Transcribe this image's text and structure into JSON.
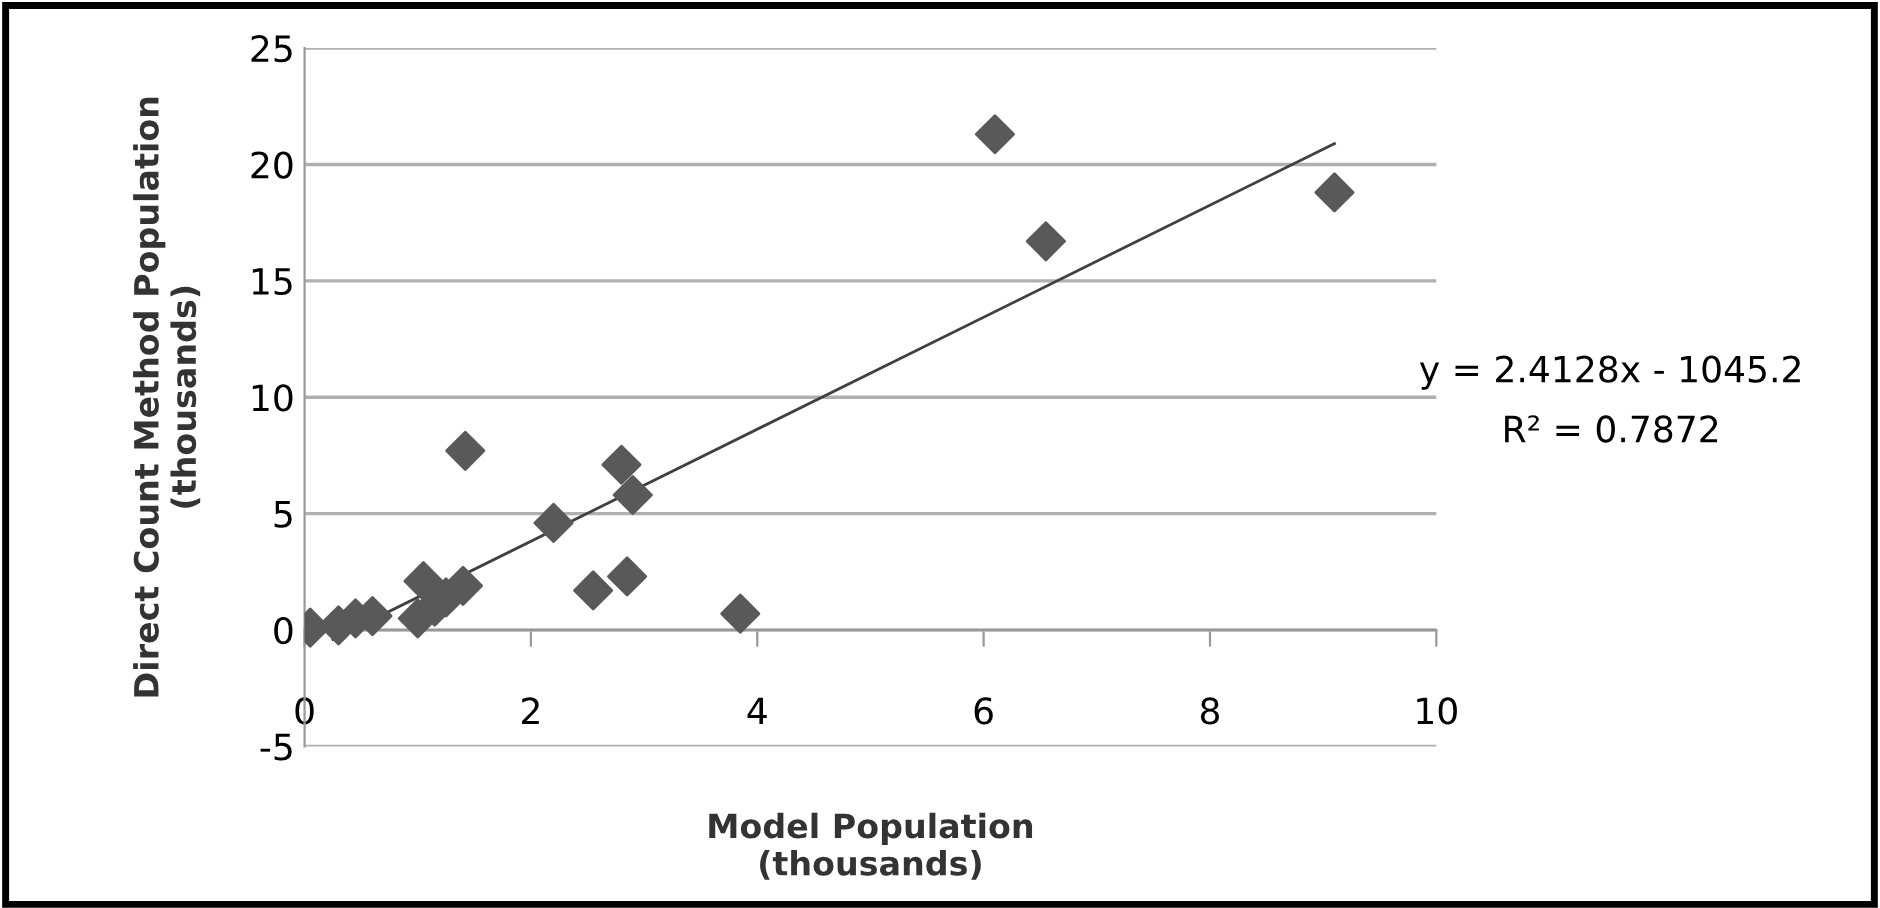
{
  "chart_data": {
    "type": "scatter",
    "xlabel": "Model Population\n(thousands)",
    "ylabel": "Direct Count Method Population\n(thousands)",
    "xlim": [
      0,
      10
    ],
    "xticks": [
      0,
      2,
      4,
      6,
      8,
      10
    ],
    "ylim": [
      -5,
      25
    ],
    "yticks": [
      -5,
      0,
      5,
      10,
      15,
      20,
      25
    ],
    "grid": "y",
    "series": [
      {
        "color": "#595959",
        "marker": "diamond",
        "x": [
          0.05,
          0.3,
          0.45,
          0.6,
          0.8,
          0.9,
          1.0,
          1.05,
          1.15,
          1.25,
          1.4,
          1.42,
          2.2,
          2.55,
          2.8,
          2.85,
          2.9,
          3.85,
          6.1,
          6.55,
          9.1
        ],
        "values": [
          0.1,
          0.2,
          0.5,
          0.6,
          null,
          null,
          0.5,
          2.1,
          1.0,
          1.4,
          1.9,
          7.7,
          4.6,
          1.7,
          7.1,
          2.3,
          5.8,
          0.7,
          21.3,
          16.7,
          18.8
        ]
      },
      {
        "type": "line",
        "color": "#404040",
        "x": [
          0.25,
          9.1
        ],
        "values": [
          -0.4,
          20.9
        ]
      }
    ],
    "annotations": [
      "y = 2.4128x - 1045.2",
      "R² = 0.7872"
    ]
  }
}
